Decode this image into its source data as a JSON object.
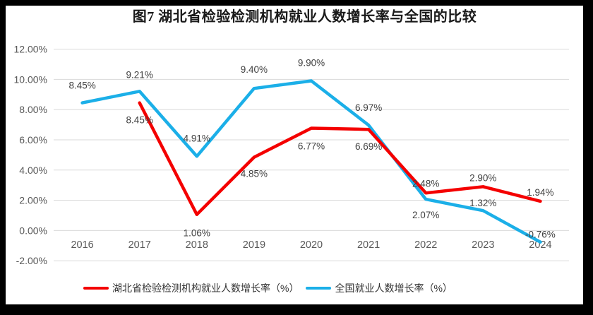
{
  "chart_data": {
    "type": "line",
    "title": "图7 湖北省检验检测机构就业人数增长率与全国的比较",
    "categories": [
      "2016",
      "2017",
      "2018",
      "2019",
      "2020",
      "2021",
      "2022",
      "2023",
      "2024"
    ],
    "y_axis": {
      "min": -2,
      "max": 12,
      "step": 2,
      "tick_labels": [
        "12.00%",
        "10.00%",
        "8.00%",
        "6.00%",
        "4.00%",
        "2.00%",
        "0.00%",
        "-2.00%"
      ]
    },
    "grid": true,
    "legend_position": "bottom",
    "series": [
      {
        "id": "hubei",
        "name": "湖北省检验检测机构就业人数增长率（%）",
        "color": "#f40000",
        "values": [
          null,
          8.45,
          1.06,
          4.85,
          6.77,
          6.69,
          2.48,
          2.9,
          1.94
        ],
        "labels": [
          "",
          "8.45%",
          "1.06%",
          "4.85%",
          "6.77%",
          "6.69%",
          "2.48%",
          "2.90%",
          "1.94%"
        ],
        "label_dy": [
          0,
          24,
          26,
          23,
          25,
          24,
          -14,
          -13,
          -13
        ]
      },
      {
        "id": "national",
        "name": "全国就业人数增长率（%）",
        "color": "#1bafe8",
        "values": [
          8.45,
          9.21,
          4.91,
          9.4,
          9.9,
          6.97,
          2.07,
          1.32,
          -0.76
        ],
        "labels": [
          "8.45%",
          "9.21%",
          "4.91%",
          "9.40%",
          "9.90%",
          "6.97%",
          "2.07%",
          "1.32%",
          "-0.76%"
        ],
        "label_dy": [
          -25,
          -24,
          -26,
          -27,
          -26,
          -25,
          22,
          -11,
          -11
        ]
      }
    ]
  },
  "colors": {
    "frame": "#000000",
    "background": "#ffffff",
    "grid": "#d9d9d9",
    "axis_text": "#595959",
    "label_text": "#404040"
  }
}
